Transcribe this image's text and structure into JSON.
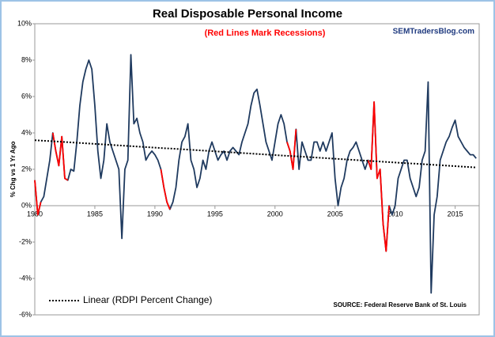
{
  "chart_data": {
    "type": "line",
    "title": "Real Disposable Personal Income",
    "subtitle": "(Red Lines Mark Recessions)",
    "watermark": "SEMTradersBlog.com",
    "y_label": "% Chg vs 1 Yr Ago",
    "source": "SOURCE:  Federal Reserve Bank of St. Louis",
    "x": [
      1980,
      1980.25,
      1980.5,
      1980.75,
      1981,
      1981.25,
      1981.5,
      1981.75,
      1982,
      1982.25,
      1982.5,
      1982.75,
      1983,
      1983.25,
      1983.5,
      1983.75,
      1984,
      1984.25,
      1984.5,
      1984.75,
      1985,
      1985.25,
      1985.5,
      1985.75,
      1986,
      1986.25,
      1986.5,
      1986.75,
      1987,
      1987.25,
      1987.5,
      1987.75,
      1988,
      1988.25,
      1988.5,
      1988.75,
      1989,
      1989.25,
      1989.5,
      1989.75,
      1990,
      1990.25,
      1990.5,
      1990.75,
      1991,
      1991.25,
      1991.5,
      1991.75,
      1992,
      1992.25,
      1992.5,
      1992.75,
      1993,
      1993.25,
      1993.5,
      1993.75,
      1994,
      1994.25,
      1994.5,
      1994.75,
      1995,
      1995.25,
      1995.5,
      1995.75,
      1996,
      1996.25,
      1996.5,
      1996.75,
      1997,
      1997.25,
      1997.5,
      1997.75,
      1998,
      1998.25,
      1998.5,
      1998.75,
      1999,
      1999.25,
      1999.5,
      1999.75,
      2000,
      2000.25,
      2000.5,
      2000.75,
      2001,
      2001.25,
      2001.5,
      2001.75,
      2002,
      2002.25,
      2002.5,
      2002.75,
      2003,
      2003.25,
      2003.5,
      2003.75,
      2004,
      2004.25,
      2004.5,
      2004.75,
      2005,
      2005.25,
      2005.5,
      2005.75,
      2006,
      2006.25,
      2006.5,
      2006.75,
      2007,
      2007.25,
      2007.5,
      2007.75,
      2008,
      2008.25,
      2008.5,
      2008.75,
      2009,
      2009.25,
      2009.5,
      2009.75,
      2010,
      2010.25,
      2010.5,
      2010.75,
      2011,
      2011.25,
      2011.5,
      2011.75,
      2012,
      2012.25,
      2012.5,
      2012.75,
      2013,
      2013.25,
      2013.5,
      2013.75,
      2014,
      2014.25,
      2014.5,
      2014.75,
      2015,
      2015.25,
      2015.5,
      2015.75,
      2016,
      2016.25,
      2016.5,
      2016.75
    ],
    "series": [
      {
        "color": "#1f3a5f",
        "values": [
          1.4,
          -0.5,
          0.2,
          0.5,
          1.5,
          2.5,
          4.0,
          3.0,
          2.2,
          3.8,
          1.5,
          1.4,
          2.0,
          1.9,
          3.5,
          5.5,
          6.8,
          7.5,
          8.0,
          7.5,
          5.5,
          3.0,
          1.5,
          2.5,
          4.5,
          3.5,
          3.0,
          2.5,
          2.0,
          -1.8,
          2.0,
          2.5,
          8.3,
          4.5,
          4.8,
          4.0,
          3.5,
          2.5,
          2.8,
          3.0,
          2.8,
          2.5,
          2.0,
          1.0,
          0.2,
          -0.2,
          0.2,
          1.0,
          2.5,
          3.5,
          3.8,
          4.5,
          2.5,
          2.0,
          1.0,
          1.5,
          2.5,
          2.0,
          3.0,
          3.5,
          3.0,
          2.5,
          2.8,
          3.0,
          2.5,
          3.0,
          3.2,
          3.0,
          2.8,
          3.5,
          4.0,
          4.5,
          5.5,
          6.2,
          6.4,
          5.5,
          4.5,
          3.5,
          3.0,
          2.5,
          3.5,
          4.5,
          5.0,
          4.5,
          3.5,
          3.0,
          2.0,
          4.2,
          2.0,
          3.5,
          3.0,
          2.5,
          2.5,
          3.5,
          3.5,
          3.0,
          3.5,
          3.0,
          3.5,
          4.0,
          1.5,
          0.0,
          1.0,
          1.5,
          2.5,
          3.0,
          3.2,
          3.5,
          3.0,
          2.5,
          2.0,
          2.5,
          2.0,
          5.7,
          1.5,
          2.0,
          -1.0,
          -2.5,
          0.0,
          -0.5,
          0.0,
          1.5,
          2.0,
          2.5,
          2.5,
          1.5,
          1.0,
          0.5,
          1.0,
          2.5,
          3.0,
          6.8,
          -4.8,
          -0.5,
          0.5,
          2.5,
          3.0,
          3.5,
          3.8,
          4.3,
          4.7,
          3.8,
          3.5,
          3.2,
          3.0,
          2.8,
          2.8,
          2.6
        ]
      },
      {
        "color": "#ff0000",
        "values": [
          1.4,
          -0.5,
          0.2,
          null,
          null,
          null,
          4.0,
          3.0,
          2.2,
          3.8,
          1.5,
          1.4,
          null,
          null,
          null,
          null,
          null,
          null,
          null,
          null,
          null,
          null,
          null,
          null,
          null,
          null,
          null,
          null,
          null,
          null,
          null,
          null,
          null,
          null,
          null,
          null,
          null,
          null,
          null,
          null,
          null,
          null,
          2.0,
          1.0,
          0.2,
          -0.2,
          null,
          null,
          null,
          null,
          null,
          null,
          null,
          null,
          null,
          null,
          null,
          null,
          null,
          null,
          null,
          null,
          null,
          null,
          null,
          null,
          null,
          null,
          null,
          null,
          null,
          null,
          null,
          null,
          null,
          null,
          null,
          null,
          null,
          null,
          null,
          null,
          null,
          null,
          3.5,
          3.0,
          2.0,
          4.2,
          null,
          null,
          null,
          null,
          null,
          null,
          null,
          null,
          null,
          null,
          null,
          null,
          null,
          null,
          null,
          null,
          null,
          null,
          null,
          null,
          null,
          null,
          null,
          2.5,
          2.0,
          5.7,
          1.5,
          2.0,
          -1.0,
          -2.5,
          0.0,
          null,
          null,
          null,
          null,
          null,
          null,
          null,
          null,
          null,
          null,
          null,
          null,
          null,
          null,
          null,
          null,
          null,
          null,
          null,
          null,
          null,
          null,
          null,
          null,
          null,
          null,
          null,
          null,
          null
        ]
      },
      {
        "name": "Linear (RDPI Percent Change)",
        "color": "#000000",
        "dotted": true,
        "x": [
          1980,
          2016.75
        ],
        "values": [
          3.6,
          2.1
        ]
      }
    ],
    "xlim": [
      1980,
      2017
    ],
    "xticks": [
      1980,
      1985,
      1990,
      1995,
      2000,
      2005,
      2010,
      2015
    ],
    "ylim": [
      -6,
      10
    ],
    "yticks": [
      {
        "value": -6,
        "label": "-6%"
      },
      {
        "value": -4,
        "label": "-4%"
      },
      {
        "value": -2,
        "label": "-2%"
      },
      {
        "value": 0,
        "label": "0%"
      },
      {
        "value": 2,
        "label": "2%"
      },
      {
        "value": 4,
        "label": "4%"
      },
      {
        "value": 6,
        "label": "6%"
      },
      {
        "value": 8,
        "label": "8%"
      },
      {
        "value": 10,
        "label": "10%"
      }
    ]
  }
}
